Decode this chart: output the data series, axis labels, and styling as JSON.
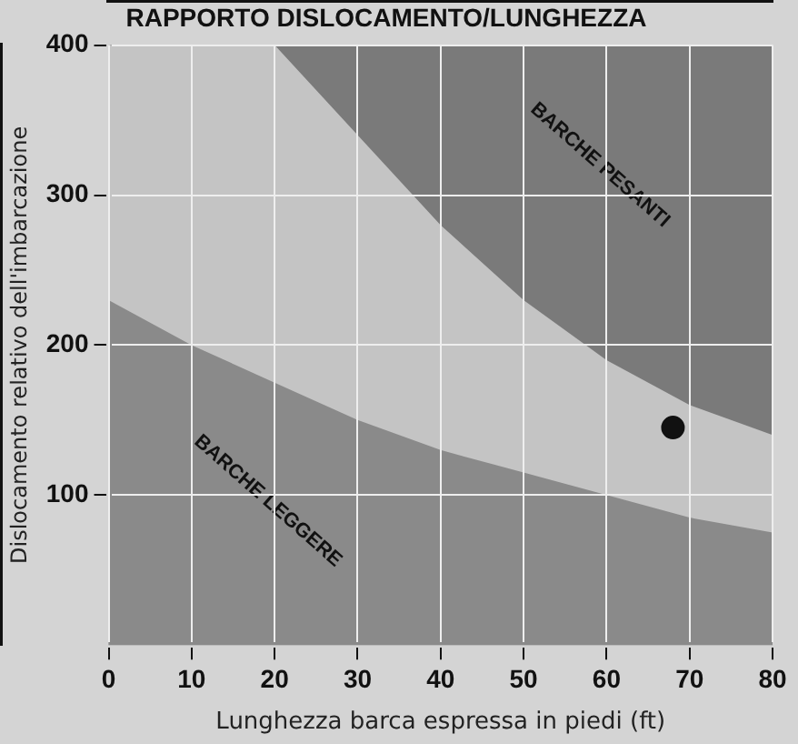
{
  "chart_data": {
    "type": "area",
    "title": "RAPPORTO DISLOCAMENTO/LUNGHEZZA",
    "xlabel": "Lunghezza barca espressa in piedi (ft)",
    "ylabel": "Dislocamento relativo dell'imbarcazione",
    "x": [
      0,
      10,
      20,
      30,
      40,
      50,
      60,
      70,
      80
    ],
    "series": [
      {
        "color": "#c4c4c4",
        "values": [
          400,
          400,
          400,
          340,
          280,
          230,
          190,
          160,
          140
        ]
      },
      {
        "color": "#8a8a8a",
        "values": [
          230,
          200,
          175,
          150,
          130,
          115,
          100,
          85,
          75
        ]
      },
      {
        "type": "scatter",
        "color": "#111111",
        "x": [
          68
        ],
        "values": [
          145
        ]
      }
    ],
    "xlim": [
      0,
      80
    ],
    "ylim": [
      0,
      400
    ],
    "xticks": [
      0,
      10,
      20,
      30,
      40,
      50,
      60,
      70,
      80
    ],
    "yticks": [
      100,
      200,
      300,
      400
    ],
    "grid": true,
    "legend": false,
    "annotations": [
      "BARCHE PESANTI",
      "BARCHE LEGGERE"
    ]
  }
}
